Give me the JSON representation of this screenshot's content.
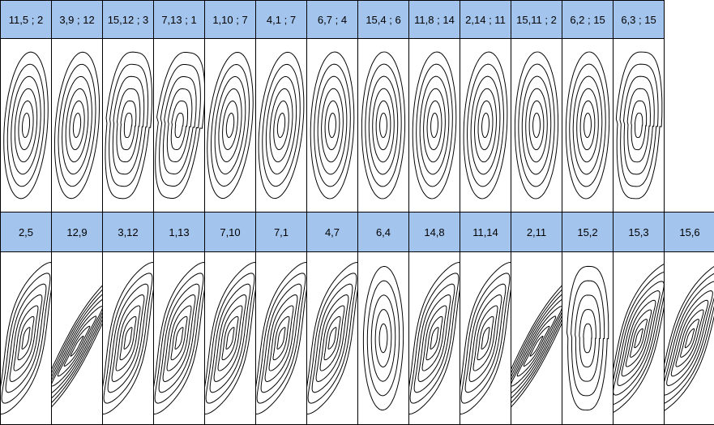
{
  "rows": [
    {
      "cells": [
        {
          "label": "11,5 ; 2"
        },
        {
          "label": "3,9 ; 12"
        },
        {
          "label": "15,12 ; 3"
        },
        {
          "label": "7,13 ; 1"
        },
        {
          "label": "1,10 ; 7"
        },
        {
          "label": "4,1 ; 7"
        },
        {
          "label": "6,7 ; 4"
        },
        {
          "label": "15,4 ; 6"
        },
        {
          "label": "11,8 ; 14"
        },
        {
          "label": "2,14 ; 11"
        },
        {
          "label": "15,11 ; 2"
        },
        {
          "label": "6,2 ; 15"
        },
        {
          "label": "6,3 ; 15"
        }
      ]
    },
    {
      "cells": [
        {
          "label": "2,5"
        },
        {
          "label": "12,9"
        },
        {
          "label": "3,12"
        },
        {
          "label": "1,13"
        },
        {
          "label": "7,10"
        },
        {
          "label": "7,1"
        },
        {
          "label": "4,7"
        },
        {
          "label": "6,4"
        },
        {
          "label": "14,8"
        },
        {
          "label": "11,14"
        },
        {
          "label": "2,11"
        },
        {
          "label": "15,2"
        },
        {
          "label": "15,3"
        },
        {
          "label": "15,6"
        }
      ]
    }
  ]
}
